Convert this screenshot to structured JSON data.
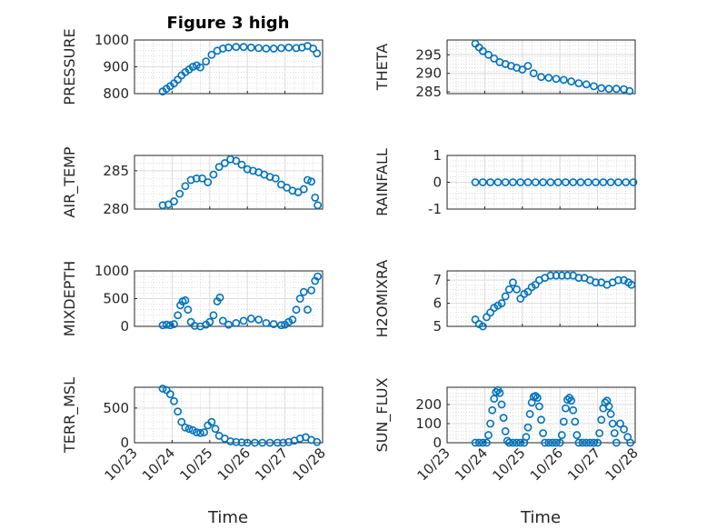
{
  "chart_data": [
    {
      "type": "scatter",
      "title": "Figure 3 high",
      "ylabel": "PRESSURE",
      "xlabel": "",
      "xlim": [
        0,
        5
      ],
      "ylim": [
        800,
        1000
      ],
      "yticks": [
        800,
        900,
        1000
      ],
      "x": [
        0.75,
        0.85,
        0.95,
        1.05,
        1.15,
        1.25,
        1.35,
        1.45,
        1.55,
        1.65,
        1.75,
        1.9,
        2.05,
        2.2,
        2.35,
        2.5,
        2.7,
        2.9,
        3.1,
        3.3,
        3.5,
        3.7,
        3.9,
        4.1,
        4.3,
        4.45,
        4.6,
        4.75,
        4.85
      ],
      "y": [
        808,
        818,
        828,
        838,
        852,
        868,
        880,
        890,
        900,
        905,
        898,
        920,
        945,
        960,
        968,
        972,
        974,
        974,
        972,
        970,
        968,
        968,
        970,
        972,
        970,
        972,
        978,
        968,
        950
      ]
    },
    {
      "type": "scatter",
      "ylabel": "THETA",
      "xlim": [
        0,
        5
      ],
      "ylim": [
        284.5,
        299
      ],
      "yticks": [
        285,
        290,
        295
      ],
      "x": [
        0.75,
        0.85,
        0.95,
        1.1,
        1.25,
        1.4,
        1.55,
        1.7,
        1.85,
        2.0,
        2.15,
        2.3,
        2.5,
        2.7,
        2.9,
        3.1,
        3.3,
        3.5,
        3.7,
        3.9,
        4.1,
        4.3,
        4.5,
        4.7,
        4.85
      ],
      "y": [
        298,
        297,
        296,
        295,
        294,
        293,
        292.5,
        292,
        291.5,
        291,
        292,
        290,
        289,
        288.8,
        288.5,
        288.2,
        287.8,
        287.3,
        287,
        286.5,
        286,
        285.8,
        285.8,
        285.7,
        285.2
      ]
    },
    {
      "type": "scatter",
      "ylabel": "AIR_TEMP",
      "xlim": [
        0,
        5
      ],
      "ylim": [
        280,
        287
      ],
      "yticks": [
        280,
        285
      ],
      "x": [
        0.75,
        0.9,
        1.05,
        1.2,
        1.35,
        1.5,
        1.65,
        1.8,
        1.95,
        2.1,
        2.25,
        2.4,
        2.55,
        2.7,
        2.85,
        3.0,
        3.15,
        3.3,
        3.45,
        3.6,
        3.75,
        3.9,
        4.05,
        4.2,
        4.35,
        4.5,
        4.6,
        4.7,
        4.8,
        4.87
      ],
      "y": [
        280.5,
        280.6,
        281,
        282,
        283,
        283.8,
        284,
        284,
        283.5,
        284.5,
        285.5,
        286,
        286.5,
        286.3,
        285.8,
        285.2,
        285,
        284.8,
        284.5,
        284.2,
        284,
        283.2,
        282.8,
        282.4,
        282.2,
        282.6,
        283.8,
        283.6,
        281.5,
        280.5
      ]
    },
    {
      "type": "scatter",
      "ylabel": "RAINFALL",
      "xlim": [
        0,
        5
      ],
      "ylim": [
        -1,
        1
      ],
      "yticks": [
        -1,
        0,
        1
      ],
      "x": [
        0.75,
        0.95,
        1.15,
        1.35,
        1.55,
        1.75,
        1.95,
        2.15,
        2.35,
        2.55,
        2.75,
        2.95,
        3.15,
        3.35,
        3.55,
        3.75,
        3.95,
        4.15,
        4.35,
        4.55,
        4.75,
        4.95
      ],
      "y": [
        0,
        0,
        0,
        0,
        0,
        0,
        0,
        0,
        0,
        0,
        0,
        0,
        0,
        0,
        0,
        0,
        0,
        0,
        0,
        0,
        0,
        0
      ]
    },
    {
      "type": "scatter",
      "ylabel": "MIXDEPTH",
      "xlim": [
        0,
        5
      ],
      "ylim": [
        0,
        1000
      ],
      "yticks": [
        0,
        500,
        1000
      ],
      "x": [
        0.75,
        0.85,
        0.95,
        1.05,
        1.15,
        1.22,
        1.28,
        1.35,
        1.42,
        1.5,
        1.6,
        1.75,
        1.9,
        2.0,
        2.1,
        2.2,
        2.27,
        2.35,
        2.5,
        2.7,
        2.9,
        3.1,
        3.3,
        3.5,
        3.7,
        3.9,
        4.0,
        4.1,
        4.2,
        4.3,
        4.4,
        4.5,
        4.6,
        4.7,
        4.8,
        4.87
      ],
      "y": [
        20,
        30,
        20,
        40,
        200,
        380,
        450,
        470,
        300,
        80,
        10,
        0,
        30,
        80,
        200,
        450,
        520,
        100,
        30,
        60,
        100,
        140,
        120,
        60,
        40,
        20,
        30,
        80,
        120,
        300,
        500,
        620,
        300,
        650,
        820,
        900
      ]
    },
    {
      "type": "scatter",
      "ylabel": "H2OMIXRA",
      "xlim": [
        0,
        5
      ],
      "ylim": [
        5,
        7.4
      ],
      "yticks": [
        5,
        6,
        7
      ],
      "x": [
        0.75,
        0.85,
        0.95,
        1.05,
        1.15,
        1.25,
        1.35,
        1.45,
        1.55,
        1.65,
        1.75,
        1.85,
        1.95,
        2.05,
        2.15,
        2.25,
        2.35,
        2.45,
        2.6,
        2.75,
        2.9,
        3.05,
        3.2,
        3.35,
        3.5,
        3.65,
        3.8,
        3.95,
        4.1,
        4.25,
        4.4,
        4.55,
        4.7,
        4.82,
        4.9
      ],
      "y": [
        5.3,
        5.1,
        5.0,
        5.4,
        5.6,
        5.8,
        5.9,
        6.0,
        6.3,
        6.6,
        6.9,
        6.6,
        6.2,
        6.4,
        6.5,
        6.7,
        6.8,
        7.0,
        7.1,
        7.2,
        7.2,
        7.2,
        7.2,
        7.2,
        7.1,
        7.1,
        7.0,
        6.9,
        6.9,
        6.8,
        6.9,
        7.0,
        7.0,
        6.9,
        6.8
      ]
    },
    {
      "type": "scatter",
      "ylabel": "TERR_MSL",
      "xlim": [
        0,
        5
      ],
      "ylim": [
        0,
        800
      ],
      "yticks": [
        0,
        500
      ],
      "x": [
        0.75,
        0.85,
        0.95,
        1.05,
        1.15,
        1.25,
        1.35,
        1.45,
        1.55,
        1.65,
        1.75,
        1.85,
        1.95,
        2.05,
        2.15,
        2.25,
        2.4,
        2.55,
        2.7,
        2.85,
        3.0,
        3.2,
        3.4,
        3.6,
        3.8,
        3.95,
        4.1,
        4.25,
        4.4,
        4.55,
        4.7,
        4.85
      ],
      "y": [
        780,
        760,
        700,
        600,
        450,
        300,
        220,
        200,
        180,
        150,
        140,
        150,
        250,
        300,
        200,
        100,
        60,
        20,
        10,
        5,
        0,
        0,
        0,
        0,
        0,
        0,
        10,
        30,
        60,
        80,
        40,
        10
      ]
    },
    {
      "type": "scatter",
      "ylabel": "SUN_FLUX",
      "xlim": [
        0,
        5
      ],
      "ylim": [
        0,
        290
      ],
      "yticks": [
        0,
        100,
        200
      ],
      "x": [
        0.75,
        0.85,
        0.95,
        1.05,
        1.1,
        1.15,
        1.2,
        1.25,
        1.3,
        1.35,
        1.4,
        1.45,
        1.5,
        1.55,
        1.6,
        1.65,
        1.75,
        1.85,
        1.95,
        2.05,
        2.1,
        2.15,
        2.2,
        2.25,
        2.3,
        2.35,
        2.4,
        2.45,
        2.5,
        2.55,
        2.6,
        2.7,
        2.8,
        2.9,
        3.0,
        3.05,
        3.1,
        3.15,
        3.2,
        3.25,
        3.3,
        3.35,
        3.4,
        3.45,
        3.5,
        3.6,
        3.7,
        3.8,
        3.9,
        4.0,
        4.05,
        4.1,
        4.15,
        4.2,
        4.25,
        4.3,
        4.35,
        4.4,
        4.45,
        4.5,
        4.6,
        4.7,
        4.8,
        4.87
      ],
      "y": [
        0,
        0,
        0,
        0,
        40,
        100,
        170,
        230,
        265,
        275,
        260,
        200,
        130,
        60,
        10,
        0,
        0,
        0,
        0,
        0,
        30,
        80,
        150,
        210,
        240,
        245,
        235,
        190,
        120,
        50,
        0,
        0,
        0,
        0,
        0,
        40,
        110,
        180,
        225,
        235,
        220,
        170,
        110,
        40,
        0,
        0,
        0,
        0,
        0,
        0,
        50,
        120,
        180,
        210,
        220,
        190,
        150,
        100,
        50,
        0,
        100,
        70,
        30,
        0
      ]
    }
  ],
  "shared_x": {
    "xlabel": "Time",
    "tick_values": [
      0,
      1,
      2,
      3,
      4,
      5
    ],
    "tick_labels": [
      "10/23",
      "10/24",
      "10/25",
      "10/26",
      "10/27",
      "10/28"
    ]
  },
  "colors": {
    "marker": "#0072BD",
    "axis": "#262626",
    "grid": "#dcdcdc",
    "background": "#ffffff"
  }
}
